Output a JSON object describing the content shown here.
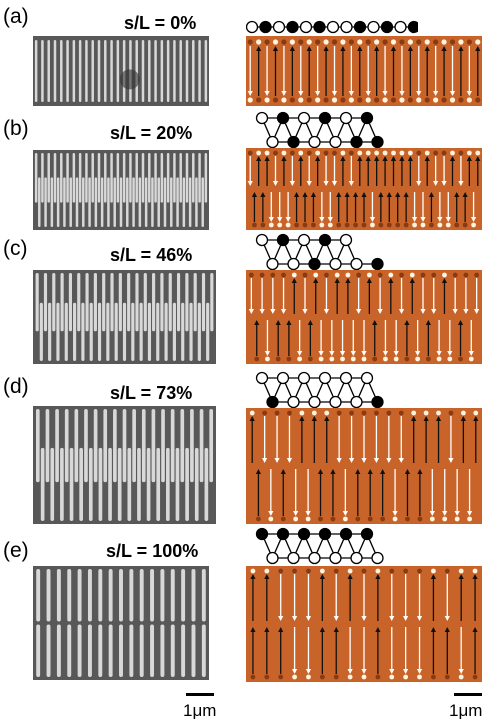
{
  "panels": [
    {
      "label": "(a)",
      "ratio": "s/L = 0%",
      "mode": "single"
    },
    {
      "label": "(b)",
      "ratio": "s/L = 20%",
      "mode": "offset"
    },
    {
      "label": "(c)",
      "ratio": "s/L = 46%",
      "mode": "offset"
    },
    {
      "label": "(d)",
      "ratio": "s/L = 73%",
      "mode": "offset"
    },
    {
      "label": "(e)",
      "ratio": "s/L = 100%",
      "mode": "split"
    }
  ],
  "scale": {
    "left": "1μm",
    "right": "1μm"
  },
  "colors": {
    "sem_bg": "#585858",
    "bar": "#d8d8d8",
    "mfm_bg": "#c8642a",
    "mfm_dark": "#8a3a10",
    "arrow_white": "#ffffff",
    "arrow_black": "#111111"
  }
}
